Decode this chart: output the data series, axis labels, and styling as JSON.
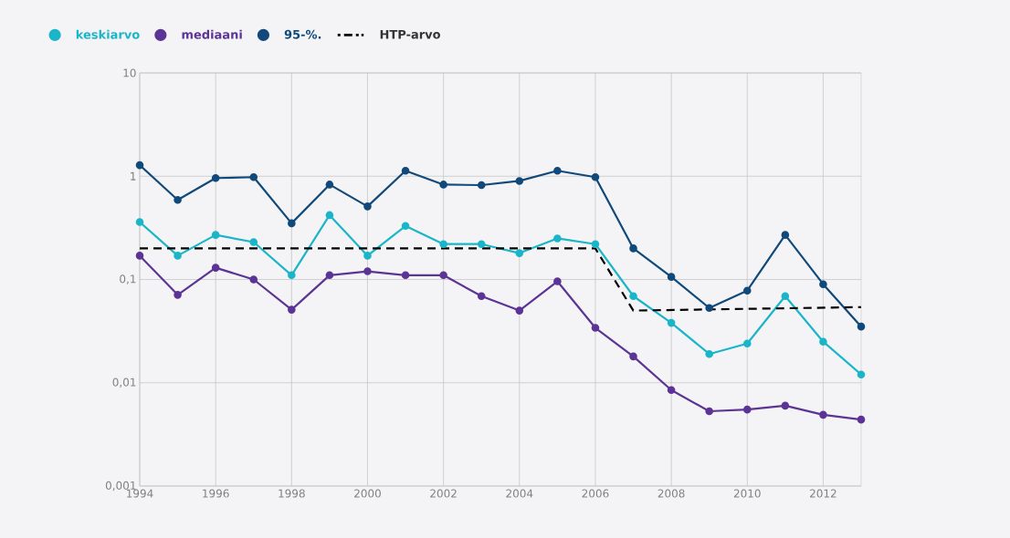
{
  "chart_data": {
    "type": "line",
    "x": [
      1994,
      1995,
      1996,
      1997,
      1998,
      1999,
      2000,
      2001,
      2002,
      2003,
      2004,
      2005,
      2006,
      2007,
      2008,
      2009,
      2010,
      2011,
      2012,
      2013
    ],
    "series": [
      {
        "name": "keskiarvo",
        "color": "#1ab5c8",
        "values": [
          0.36,
          0.17,
          0.27,
          0.23,
          0.11,
          0.42,
          0.17,
          0.33,
          0.22,
          0.22,
          0.18,
          0.25,
          0.22,
          0.069,
          0.038,
          0.019,
          0.024,
          0.069,
          0.025,
          0.012
        ]
      },
      {
        "name": "mediaani",
        "color": "#5b3496",
        "values": [
          0.17,
          0.071,
          0.13,
          0.1,
          0.051,
          0.11,
          0.12,
          0.11,
          0.11,
          0.069,
          0.05,
          0.096,
          0.034,
          0.018,
          0.0085,
          0.0053,
          0.0055,
          0.006,
          0.0049,
          0.0044
        ]
      },
      {
        "name": "95-%.",
        "color": "#114a7a",
        "values": [
          1.28,
          0.59,
          0.96,
          0.98,
          0.35,
          0.83,
          0.51,
          1.13,
          0.83,
          0.82,
          0.9,
          1.13,
          0.98,
          0.2,
          0.106,
          0.053,
          0.078,
          0.27,
          0.09,
          0.035
        ]
      },
      {
        "name": "HTP-arvo",
        "color": "#000000",
        "x": [
          1994,
          2006,
          2007,
          2013
        ],
        "values": [
          0.2,
          0.2,
          0.05,
          0.054
        ],
        "marker": "none",
        "line_style": "dashed"
      }
    ],
    "xlim": [
      1994,
      2013
    ],
    "xticks": [
      1994,
      1996,
      1998,
      2000,
      2002,
      2004,
      2006,
      2008,
      2010,
      2012
    ],
    "ylim": [
      0.001,
      10
    ],
    "yticks": [
      {
        "value": 0.001,
        "label": "0,001"
      },
      {
        "value": 0.01,
        "label": "0,01"
      },
      {
        "value": 0.1,
        "label": "0,1"
      },
      1,
      10
    ],
    "log": "y",
    "grid": true,
    "legend": "top left",
    "marker": "circle",
    "line_style": "solid"
  }
}
